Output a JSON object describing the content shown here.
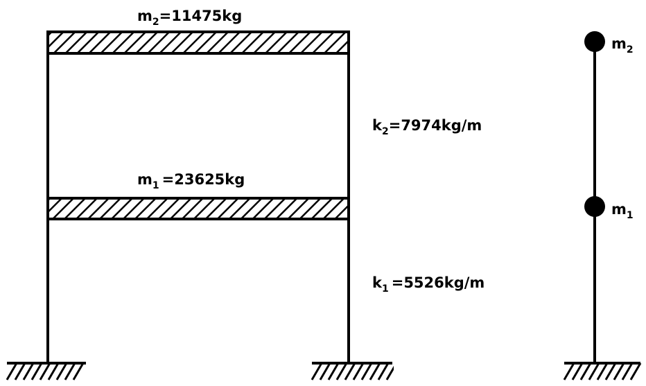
{
  "frame": {
    "top_mass": {
      "symbol": "m",
      "index": "2",
      "value": "=11475kg"
    },
    "lower_mass": {
      "symbol": "m",
      "index": "1",
      "value": "=23625kg"
    },
    "upper_stiffness": {
      "symbol": "k",
      "index": "2",
      "value": "=7974kg/m"
    },
    "lower_stiffness": {
      "symbol": "k",
      "index": "1",
      "value": "=5526kg/m"
    }
  },
  "lumped_model": {
    "top_node": {
      "symbol": "m",
      "index": "2"
    },
    "lower_node": {
      "symbol": "m",
      "index": "1"
    }
  },
  "colors": {
    "ink": "#000000",
    "background": "#ffffff"
  }
}
